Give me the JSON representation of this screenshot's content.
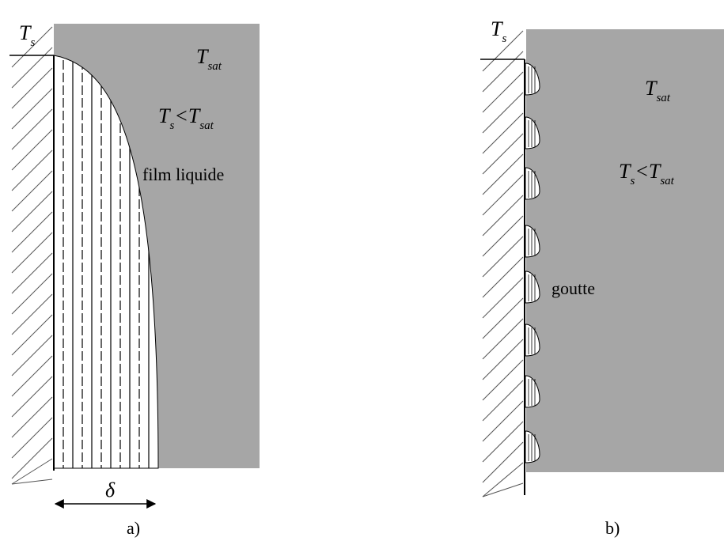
{
  "panel_a": {
    "wall_label": {
      "main": "T",
      "sub": "s"
    },
    "vapor_label": {
      "main": "T",
      "sub": "sat"
    },
    "condition": {
      "left_main": "T",
      "left_sub": "s",
      "relation": "<",
      "right_main": "T",
      "right_sub": "sat"
    },
    "film_label": "film liquide",
    "thickness_label": "δ",
    "caption": "a)"
  },
  "panel_b": {
    "wall_label": {
      "main": "T",
      "sub": "s"
    },
    "vapor_label": {
      "main": "T",
      "sub": "sat"
    },
    "condition": {
      "left_main": "T",
      "left_sub": "s",
      "relation": "<",
      "right_main": "T",
      "right_sub": "sat"
    },
    "drop_label": "goutte",
    "caption": "b)"
  }
}
